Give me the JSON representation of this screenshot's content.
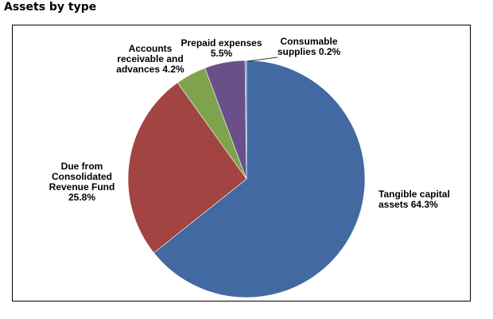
{
  "page": {
    "title": "Assets by type"
  },
  "chart_data": {
    "type": "pie",
    "title": "Assets by type",
    "slices": [
      {
        "name": "Tangible capital assets",
        "value": 64.3,
        "label": "Tangible capital\nassets 64.3%",
        "color": "#4269A1"
      },
      {
        "name": "Due from Consolidated Revenue Fund",
        "value": 25.8,
        "label": "Due from\nConsolidated\nRevenue Fund\n25.8%",
        "color": "#A14442"
      },
      {
        "name": "Accounts receivable and advances",
        "value": 4.2,
        "label": "Accounts\nreceivable and\nadvances 4.2%",
        "color": "#7FA24C"
      },
      {
        "name": "Prepaid expenses",
        "value": 5.5,
        "label": "Prepaid expenses\n5.5%",
        "color": "#6A5088"
      },
      {
        "name": "Consumable supplies",
        "value": 0.2,
        "label": "Consumable\nsupplies 0.2%",
        "color": "#3F97AE"
      }
    ]
  }
}
